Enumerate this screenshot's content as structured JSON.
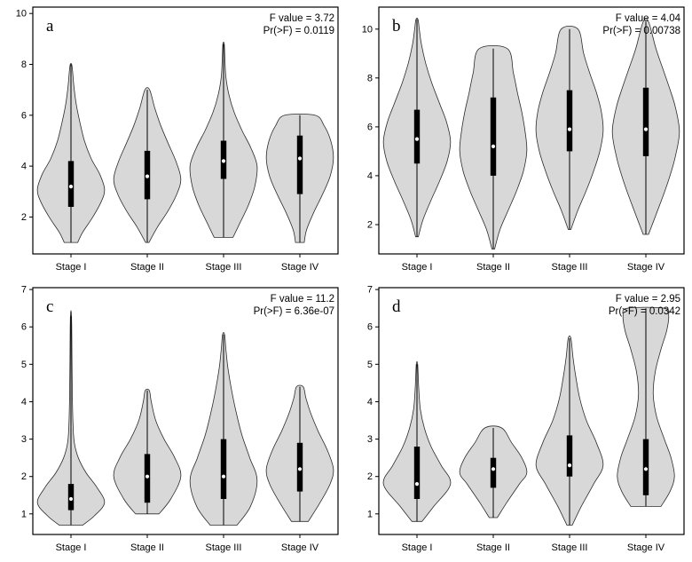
{
  "figure_title": "",
  "styles": {
    "background": "#ffffff",
    "violin_fill": "#d8d8d8",
    "violin_stroke": "#2b2b2b",
    "box_color": "#000000",
    "median_color": "#ffffff",
    "axis_color": "#000000"
  },
  "chart_data": [
    {
      "type": "violin",
      "panel_label": "a",
      "annotation_lines": [
        "F value = 3.72",
        "Pr(>F) = 0.0119"
      ],
      "categories": [
        "Stage I",
        "Stage II",
        "Stage III",
        "Stage IV"
      ],
      "ylim": [
        0.55,
        10.25
      ],
      "yticks": [
        2,
        4,
        6,
        8,
        10
      ],
      "violins": [
        {
          "min": 1.0,
          "max": 8.0,
          "q1": 2.4,
          "q3": 4.2,
          "median": 3.2,
          "shape": [
            [
              1.0,
              0.2
            ],
            [
              1.4,
              0.35
            ],
            [
              2.0,
              0.65
            ],
            [
              2.6,
              0.9
            ],
            [
              3.1,
              1.0
            ],
            [
              3.7,
              0.85
            ],
            [
              4.3,
              0.6
            ],
            [
              5.0,
              0.4
            ],
            [
              5.7,
              0.27
            ],
            [
              6.4,
              0.16
            ],
            [
              7.1,
              0.09
            ],
            [
              7.7,
              0.05
            ],
            [
              8.0,
              0.02
            ]
          ]
        },
        {
          "min": 1.0,
          "max": 7.0,
          "q1": 2.7,
          "q3": 4.6,
          "median": 3.6,
          "shape": [
            [
              1.0,
              0.05
            ],
            [
              1.6,
              0.3
            ],
            [
              2.2,
              0.6
            ],
            [
              2.9,
              0.88
            ],
            [
              3.5,
              1.0
            ],
            [
              4.2,
              0.85
            ],
            [
              4.9,
              0.62
            ],
            [
              5.6,
              0.4
            ],
            [
              6.3,
              0.22
            ],
            [
              7.0,
              0.07
            ]
          ]
        },
        {
          "min": 1.2,
          "max": 8.8,
          "q1": 3.5,
          "q3": 5.0,
          "median": 4.2,
          "shape": [
            [
              1.2,
              0.28
            ],
            [
              1.8,
              0.5
            ],
            [
              2.5,
              0.75
            ],
            [
              3.2,
              0.93
            ],
            [
              4.0,
              1.0
            ],
            [
              4.7,
              0.82
            ],
            [
              5.4,
              0.55
            ],
            [
              6.1,
              0.32
            ],
            [
              6.8,
              0.16
            ],
            [
              7.5,
              0.07
            ],
            [
              8.2,
              0.04
            ],
            [
              8.8,
              0.02
            ]
          ]
        },
        {
          "min": 1.0,
          "max": 6.0,
          "q1": 2.9,
          "q3": 5.2,
          "median": 4.3,
          "shape": [
            [
              1.0,
              0.13
            ],
            [
              1.5,
              0.2
            ],
            [
              2.2,
              0.42
            ],
            [
              2.9,
              0.68
            ],
            [
              3.6,
              0.9
            ],
            [
              4.3,
              1.0
            ],
            [
              5.0,
              0.92
            ],
            [
              5.6,
              0.72
            ],
            [
              6.0,
              0.45
            ]
          ]
        }
      ]
    },
    {
      "type": "violin",
      "panel_label": "b",
      "annotation_lines": [
        "F value = 4.04",
        "Pr(>F) = 0.00738"
      ],
      "categories": [
        "Stage I",
        "Stage II",
        "Stage III",
        "Stage IV"
      ],
      "ylim": [
        0.8,
        10.9
      ],
      "yticks": [
        2,
        4,
        6,
        8,
        10
      ],
      "violins": [
        {
          "min": 1.5,
          "max": 10.4,
          "q1": 4.5,
          "q3": 6.7,
          "median": 5.5,
          "shape": [
            [
              1.5,
              0.04
            ],
            [
              2.2,
              0.18
            ],
            [
              3.0,
              0.42
            ],
            [
              3.8,
              0.68
            ],
            [
              4.6,
              0.9
            ],
            [
              5.4,
              1.0
            ],
            [
              6.2,
              0.88
            ],
            [
              7.0,
              0.66
            ],
            [
              7.8,
              0.44
            ],
            [
              8.6,
              0.26
            ],
            [
              9.4,
              0.13
            ],
            [
              10.0,
              0.07
            ],
            [
              10.4,
              0.03
            ]
          ]
        },
        {
          "min": 1.0,
          "max": 9.2,
          "q1": 4.0,
          "q3": 7.2,
          "median": 5.2,
          "shape": [
            [
              1.0,
              0.04
            ],
            [
              1.8,
              0.2
            ],
            [
              2.6,
              0.45
            ],
            [
              3.4,
              0.7
            ],
            [
              4.2,
              0.9
            ],
            [
              5.0,
              1.0
            ],
            [
              5.8,
              0.95
            ],
            [
              6.6,
              0.85
            ],
            [
              7.4,
              0.72
            ],
            [
              8.2,
              0.6
            ],
            [
              9.2,
              0.42
            ]
          ]
        },
        {
          "min": 1.8,
          "max": 10.0,
          "q1": 5.0,
          "q3": 7.5,
          "median": 5.9,
          "shape": [
            [
              1.8,
              0.04
            ],
            [
              2.6,
              0.25
            ],
            [
              3.4,
              0.5
            ],
            [
              4.2,
              0.72
            ],
            [
              5.0,
              0.9
            ],
            [
              5.8,
              1.0
            ],
            [
              6.6,
              0.95
            ],
            [
              7.4,
              0.8
            ],
            [
              8.2,
              0.6
            ],
            [
              9.0,
              0.42
            ],
            [
              10.0,
              0.25
            ]
          ]
        },
        {
          "min": 1.6,
          "max": 10.3,
          "q1": 4.8,
          "q3": 7.6,
          "median": 5.9,
          "shape": [
            [
              1.6,
              0.08
            ],
            [
              2.4,
              0.3
            ],
            [
              3.2,
              0.52
            ],
            [
              4.0,
              0.72
            ],
            [
              4.8,
              0.88
            ],
            [
              5.8,
              1.0
            ],
            [
              6.8,
              0.88
            ],
            [
              7.6,
              0.7
            ],
            [
              8.4,
              0.5
            ],
            [
              9.2,
              0.3
            ],
            [
              10.3,
              0.08
            ]
          ]
        }
      ]
    },
    {
      "type": "violin",
      "panel_label": "c",
      "annotation_lines": [
        "F value = 11.2",
        "Pr(>F) = 6.36e-07"
      ],
      "categories": [
        "Stage I",
        "Stage II",
        "Stage III",
        "Stage IV"
      ],
      "ylim": [
        0.45,
        7.05
      ],
      "yticks": [
        1,
        2,
        3,
        4,
        5,
        6,
        7
      ],
      "violins": [
        {
          "min": 0.7,
          "max": 6.3,
          "q1": 1.1,
          "q3": 1.8,
          "median": 1.4,
          "shape": [
            [
              0.7,
              0.35
            ],
            [
              0.95,
              0.7
            ],
            [
              1.3,
              1.0
            ],
            [
              1.7,
              0.78
            ],
            [
              2.1,
              0.45
            ],
            [
              2.5,
              0.22
            ],
            [
              2.9,
              0.1
            ],
            [
              3.4,
              0.06
            ],
            [
              4.2,
              0.04
            ],
            [
              5.2,
              0.03
            ],
            [
              6.3,
              0.015
            ]
          ]
        },
        {
          "min": 1.0,
          "max": 4.3,
          "q1": 1.3,
          "q3": 2.6,
          "median": 2.0,
          "shape": [
            [
              1.0,
              0.35
            ],
            [
              1.4,
              0.7
            ],
            [
              2.0,
              1.0
            ],
            [
              2.5,
              0.82
            ],
            [
              3.0,
              0.5
            ],
            [
              3.5,
              0.25
            ],
            [
              4.0,
              0.12
            ],
            [
              4.3,
              0.06
            ]
          ]
        },
        {
          "min": 0.7,
          "max": 5.8,
          "q1": 1.4,
          "q3": 3.0,
          "median": 2.0,
          "shape": [
            [
              0.7,
              0.4
            ],
            [
              1.2,
              0.8
            ],
            [
              1.9,
              1.0
            ],
            [
              2.5,
              0.78
            ],
            [
              3.1,
              0.55
            ],
            [
              3.7,
              0.38
            ],
            [
              4.3,
              0.24
            ],
            [
              4.9,
              0.13
            ],
            [
              5.4,
              0.07
            ],
            [
              5.8,
              0.03
            ]
          ]
        },
        {
          "min": 0.8,
          "max": 4.4,
          "q1": 1.6,
          "q3": 2.9,
          "median": 2.2,
          "shape": [
            [
              0.8,
              0.25
            ],
            [
              1.3,
              0.6
            ],
            [
              1.8,
              0.9
            ],
            [
              2.2,
              1.0
            ],
            [
              2.7,
              0.82
            ],
            [
              3.2,
              0.55
            ],
            [
              3.7,
              0.32
            ],
            [
              4.1,
              0.18
            ],
            [
              4.4,
              0.1
            ]
          ]
        }
      ]
    },
    {
      "type": "violin",
      "panel_label": "d",
      "annotation_lines": [
        "F value = 2.95",
        "Pr(>F) = 0.0342"
      ],
      "categories": [
        "Stage I",
        "Stage II",
        "Stage III",
        "Stage IV"
      ],
      "ylim": [
        0.45,
        7.05
      ],
      "yticks": [
        1,
        2,
        3,
        4,
        5,
        6,
        7
      ],
      "violins": [
        {
          "min": 0.8,
          "max": 5.0,
          "q1": 1.4,
          "q3": 2.8,
          "median": 1.8,
          "shape": [
            [
              0.8,
              0.15
            ],
            [
              1.2,
              0.5
            ],
            [
              1.8,
              1.0
            ],
            [
              2.3,
              0.72
            ],
            [
              2.8,
              0.42
            ],
            [
              3.3,
              0.22
            ],
            [
              3.8,
              0.1
            ],
            [
              4.4,
              0.05
            ],
            [
              5.0,
              0.02
            ]
          ]
        },
        {
          "min": 0.9,
          "max": 3.3,
          "q1": 1.7,
          "q3": 2.5,
          "median": 2.2,
          "shape": [
            [
              0.9,
              0.12
            ],
            [
              1.3,
              0.4
            ],
            [
              1.8,
              0.78
            ],
            [
              2.1,
              1.0
            ],
            [
              2.5,
              0.85
            ],
            [
              2.9,
              0.55
            ],
            [
              3.3,
              0.25
            ]
          ]
        },
        {
          "min": 0.7,
          "max": 5.7,
          "q1": 2.0,
          "q3": 3.1,
          "median": 2.3,
          "shape": [
            [
              0.7,
              0.08
            ],
            [
              1.2,
              0.35
            ],
            [
              1.8,
              0.72
            ],
            [
              2.3,
              1.0
            ],
            [
              2.9,
              0.8
            ],
            [
              3.5,
              0.5
            ],
            [
              4.1,
              0.3
            ],
            [
              4.7,
              0.18
            ],
            [
              5.2,
              0.1
            ],
            [
              5.7,
              0.04
            ]
          ]
        },
        {
          "min": 1.2,
          "max": 6.5,
          "q1": 1.5,
          "q3": 3.0,
          "median": 2.2,
          "shape": [
            [
              1.2,
              0.45
            ],
            [
              1.6,
              0.72
            ],
            [
              2.0,
              0.85
            ],
            [
              2.5,
              0.75
            ],
            [
              3.0,
              0.55
            ],
            [
              3.6,
              0.32
            ],
            [
              4.2,
              0.22
            ],
            [
              4.8,
              0.28
            ],
            [
              5.4,
              0.45
            ],
            [
              5.9,
              0.62
            ],
            [
              6.3,
              0.68
            ],
            [
              6.5,
              0.55
            ]
          ]
        }
      ]
    }
  ]
}
